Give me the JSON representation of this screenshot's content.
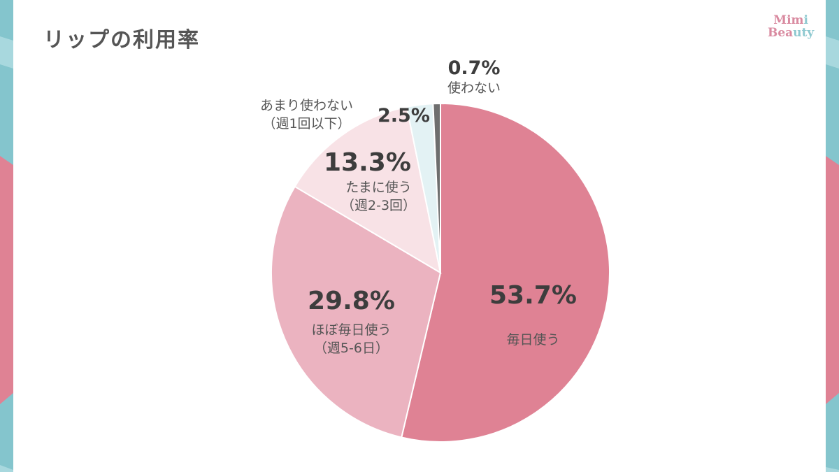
{
  "title": "リップの利用率",
  "logo": {
    "line1": "Mimi",
    "line2": "Beauty",
    "pink": "#d98aa0",
    "teal": "#8ec9d0"
  },
  "colors": {
    "frame_teal": "#84c5cd",
    "frame_teal_light": "#a8d8de",
    "frame_pink": "#df8294",
    "text_dark": "#3d3d3d",
    "text_sub": "#555555"
  },
  "chart_data": {
    "type": "pie",
    "title": "リップの利用率",
    "start_angle": "12 o'clock, clockwise",
    "slices": [
      {
        "label": "毎日使う",
        "sublabel": "",
        "value": 53.7,
        "display": "53.7%",
        "color": "#df8294"
      },
      {
        "label": "ほぼ毎日使う",
        "sublabel": "（週5-6日）",
        "value": 29.8,
        "display": "29.8%",
        "color": "#ebb3c0"
      },
      {
        "label": "たまに使う",
        "sublabel": "（週2-3回）",
        "value": 13.3,
        "display": "13.3%",
        "color": "#f8e2e6"
      },
      {
        "label": "あまり使わない",
        "sublabel": "（週1回以下）",
        "value": 2.5,
        "display": "2.5%",
        "color": "#e3f2f4"
      },
      {
        "label": "使わない",
        "sublabel": "",
        "value": 0.7,
        "display": "0.7%",
        "color": "#6e6e6e"
      }
    ],
    "legend": "none (inline labels)"
  },
  "labels": {
    "s0": {
      "pct": "53.7%",
      "name": "毎日使う"
    },
    "s1": {
      "pct": "29.8%",
      "name": "ほぼ毎日使う",
      "sub": "（週5-6日）"
    },
    "s2": {
      "pct": "13.3%",
      "name": "たまに使う",
      "sub": "（週2-3回）"
    },
    "s3": {
      "pct": "2.5%",
      "name": "あまり使わない",
      "sub": "（週1回以下）"
    },
    "s4": {
      "pct": "0.7%",
      "name": "使わない"
    }
  }
}
